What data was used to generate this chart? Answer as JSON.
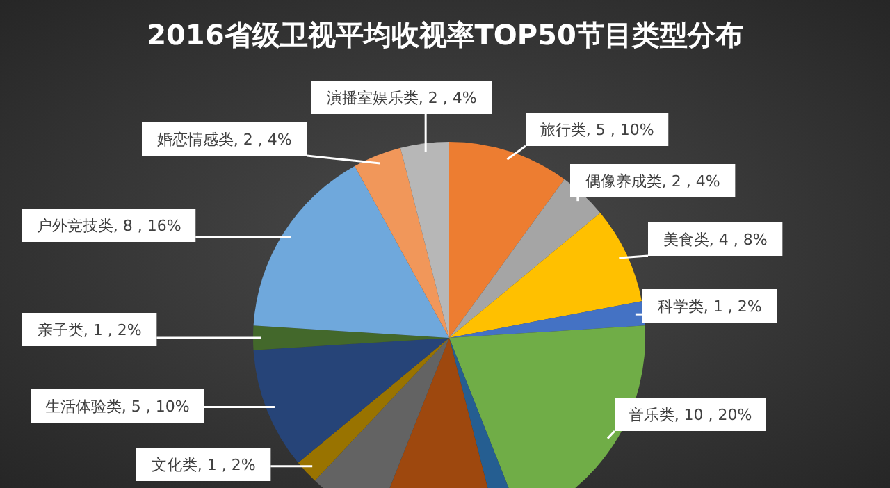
{
  "chart_data": {
    "type": "pie",
    "title": "2016省级卫视平均收视率TOP50节目类型分布",
    "categories": [
      "旅行类",
      "偶像养成类",
      "美食类",
      "科学类",
      "音乐类",
      null,
      null,
      null,
      "文化类",
      "生活体验类",
      "亲子类",
      "户外竞技类",
      "婚恋情感类",
      "演播室娱乐类"
    ],
    "values": [
      5,
      2,
      4,
      1,
      10,
      1,
      5,
      3,
      1,
      5,
      1,
      8,
      2,
      2
    ],
    "value_labels": [
      "5 , 10%",
      "2 , 4%",
      "4 , 8%",
      "1 , 2%",
      "10 , 20%",
      null,
      null,
      null,
      "1 , 2%",
      "5 , 10%",
      "1 , 2%",
      "8 , 16%",
      "2 , 4%",
      "2 , 4%"
    ],
    "colors": [
      "#ed7d31",
      "#a5a5a5",
      "#ffc000",
      "#4472c4",
      "#70ad47",
      "#255e91",
      "#9e480e",
      "#636363",
      "#997300",
      "#264478",
      "#43682b",
      "#6fa8dc",
      "#f1975a",
      "#b7b7b7"
    ],
    "legend": false
  }
}
